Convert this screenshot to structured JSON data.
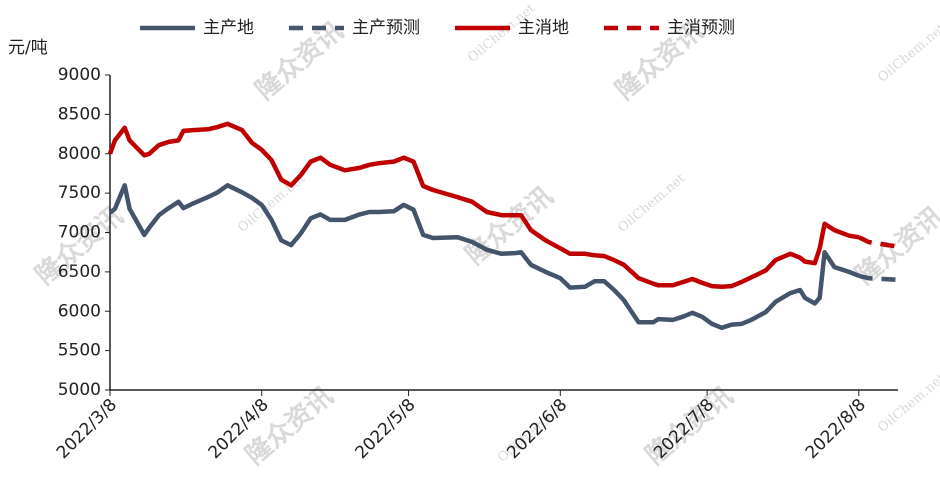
{
  "chart_data": {
    "type": "line",
    "y_label": "元/吨",
    "x": [
      "2022/3/8",
      "2022/3/9",
      "2022/3/11",
      "2022/3/12",
      "2022/3/15",
      "2022/3/16",
      "2022/3/18",
      "2022/3/20",
      "2022/3/22",
      "2022/3/23",
      "2022/3/25",
      "2022/3/28",
      "2022/3/30",
      "2022/4/1",
      "2022/4/4",
      "2022/4/6",
      "2022/4/8",
      "2022/4/10",
      "2022/4/12",
      "2022/4/14",
      "2022/4/16",
      "2022/4/18",
      "2022/4/20",
      "2022/4/22",
      "2022/4/25",
      "2022/4/28",
      "2022/4/30",
      "2022/5/2",
      "2022/5/5",
      "2022/5/7",
      "2022/5/9",
      "2022/5/11",
      "2022/5/13",
      "2022/5/18",
      "2022/5/21",
      "2022/5/24",
      "2022/5/27",
      "2022/5/30",
      "2022/5/31",
      "2022/6/2",
      "2022/6/5",
      "2022/6/8",
      "2022/6/10",
      "2022/6/13",
      "2022/6/15",
      "2022/6/17",
      "2022/6/19",
      "2022/6/21",
      "2022/6/24",
      "2022/6/27",
      "2022/6/28",
      "2022/7/1",
      "2022/7/3",
      "2022/7/5",
      "2022/7/7",
      "2022/7/9",
      "2022/7/11",
      "2022/7/13",
      "2022/7/15",
      "2022/7/17",
      "2022/7/20",
      "2022/7/22",
      "2022/7/25",
      "2022/7/27",
      "2022/7/28",
      "2022/7/30",
      "2022/7/31",
      "2022/8/1",
      "2022/8/3",
      "2022/8/6",
      "2022/8/8",
      "2022/8/10",
      "2022/8/16"
    ],
    "series": [
      {
        "name": "主产地",
        "color": "#44546a",
        "style": "solid",
        "values": [
          7250,
          7300,
          7600,
          7300,
          6970,
          7060,
          7220,
          7310,
          7390,
          7310,
          7370,
          7450,
          7510,
          7600,
          7510,
          7440,
          7350,
          7160,
          6900,
          6840,
          6990,
          7180,
          7230,
          7160,
          7160,
          7230,
          7260,
          7260,
          7270,
          7350,
          7290,
          6970,
          6930,
          6940,
          6880,
          6780,
          6730,
          6740,
          6750,
          6590,
          6500,
          6420,
          6300,
          6310,
          6380,
          6380,
          6270,
          6140,
          5860,
          5860,
          5900,
          5890,
          5930,
          5980,
          5930,
          5840,
          5790,
          5830,
          5840,
          5890,
          5990,
          6120,
          6230,
          6270,
          6170,
          6100,
          6170,
          6750,
          6560,
          6500,
          6450,
          null,
          null
        ]
      },
      {
        "name": "主产预测",
        "color": "#44546a",
        "style": "dashed",
        "values": [
          null,
          null,
          null,
          null,
          null,
          null,
          null,
          null,
          null,
          null,
          null,
          null,
          null,
          null,
          null,
          null,
          null,
          null,
          null,
          null,
          null,
          null,
          null,
          null,
          null,
          null,
          null,
          null,
          null,
          null,
          null,
          null,
          null,
          null,
          null,
          null,
          null,
          null,
          null,
          null,
          null,
          null,
          null,
          null,
          null,
          null,
          null,
          null,
          null,
          null,
          null,
          null,
          null,
          null,
          null,
          null,
          null,
          null,
          null,
          null,
          null,
          null,
          null,
          null,
          null,
          null,
          null,
          null,
          null,
          null,
          6450,
          6420,
          6400
        ]
      },
      {
        "name": "主消地",
        "color": "#c00000",
        "style": "solid",
        "values": [
          8000,
          8170,
          8330,
          8170,
          7980,
          8000,
          8110,
          8150,
          8170,
          8290,
          8300,
          8310,
          8340,
          8380,
          8300,
          8140,
          8050,
          7920,
          7670,
          7600,
          7730,
          7900,
          7950,
          7860,
          7790,
          7820,
          7860,
          7880,
          7900,
          7950,
          7900,
          7590,
          7540,
          7450,
          7390,
          7260,
          7220,
          7220,
          7220,
          7030,
          6900,
          6800,
          6730,
          6730,
          6710,
          6700,
          6650,
          6590,
          6420,
          6350,
          6330,
          6330,
          6370,
          6410,
          6360,
          6320,
          6310,
          6320,
          6370,
          6430,
          6520,
          6650,
          6730,
          6680,
          6630,
          6610,
          6800,
          7110,
          7030,
          6960,
          6940,
          null,
          null
        ]
      },
      {
        "name": "主消预测",
        "color": "#c00000",
        "style": "dashed",
        "values": [
          null,
          null,
          null,
          null,
          null,
          null,
          null,
          null,
          null,
          null,
          null,
          null,
          null,
          null,
          null,
          null,
          null,
          null,
          null,
          null,
          null,
          null,
          null,
          null,
          null,
          null,
          null,
          null,
          null,
          null,
          null,
          null,
          null,
          null,
          null,
          null,
          null,
          null,
          null,
          null,
          null,
          null,
          null,
          null,
          null,
          null,
          null,
          null,
          null,
          null,
          null,
          null,
          null,
          null,
          null,
          null,
          null,
          null,
          null,
          null,
          null,
          null,
          null,
          null,
          null,
          null,
          null,
          null,
          null,
          null,
          6940,
          6880,
          6820
        ]
      }
    ],
    "xlim": [
      "2022/3/8",
      "2022/8/16"
    ],
    "xticks": [
      "2022/3/8",
      "2022/4/8",
      "2022/5/8",
      "2022/6/8",
      "2022/7/8",
      "2022/8/8"
    ],
    "ylim": [
      5000,
      9000
    ],
    "yticks": [
      5000,
      5500,
      6000,
      6500,
      7000,
      7500,
      8000,
      8500,
      9000
    ],
    "grid": false,
    "legend": "top",
    "watermark": [
      "隆众资讯",
      "OilChem.net"
    ]
  }
}
